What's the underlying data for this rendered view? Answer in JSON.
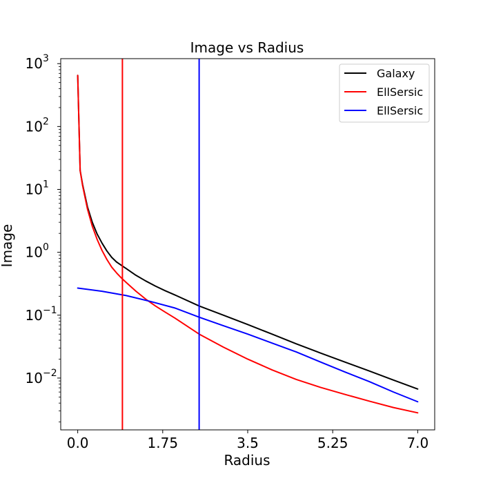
{
  "chart_data": {
    "type": "line",
    "title": "Image vs Radius",
    "xlabel": "Radius",
    "ylabel": "Image",
    "xlim": [
      -0.35,
      7.35
    ],
    "ylim": [
      0.0015,
      1200
    ],
    "yscale": "log",
    "x_ticks": [
      {
        "value": 0.0,
        "label": "0.0"
      },
      {
        "value": 1.75,
        "label": "1.75"
      },
      {
        "value": 3.5,
        "label": "3.5"
      },
      {
        "value": 5.25,
        "label": "5.25"
      },
      {
        "value": 7.0,
        "label": "7.0"
      }
    ],
    "y_ticks": [
      {
        "value": 0.01,
        "base": "10",
        "exp": "−2"
      },
      {
        "value": 0.1,
        "base": "10",
        "exp": "−1"
      },
      {
        "value": 1,
        "base": "10",
        "exp": "0"
      },
      {
        "value": 10,
        "base": "10",
        "exp": "1"
      },
      {
        "value": 100,
        "base": "10",
        "exp": "2"
      },
      {
        "value": 1000,
        "base": "10",
        "exp": "3"
      }
    ],
    "grid": false,
    "legend_position": "top-right",
    "series": [
      {
        "name": "Galaxy",
        "color": "#000000",
        "x": [
          0.0,
          0.05,
          0.1,
          0.2,
          0.3,
          0.4,
          0.5,
          0.6,
          0.7,
          0.8,
          0.9,
          1.0,
          1.2,
          1.4,
          1.6,
          1.8,
          2.0,
          2.5,
          3.0,
          3.5,
          4.0,
          4.5,
          5.0,
          5.5,
          6.0,
          6.5,
          7.0
        ],
        "y": [
          650,
          20.0,
          12.0,
          5.3,
          3.0,
          1.95,
          1.4,
          1.05,
          0.83,
          0.7,
          0.62,
          0.55,
          0.43,
          0.35,
          0.29,
          0.245,
          0.21,
          0.14,
          0.1,
          0.071,
          0.05,
          0.035,
          0.025,
          0.018,
          0.013,
          0.0093,
          0.0067
        ]
      },
      {
        "name": "EllSersic",
        "color": "#ff0000",
        "x": [
          0.0,
          0.05,
          0.1,
          0.2,
          0.3,
          0.4,
          0.5,
          0.6,
          0.7,
          0.8,
          0.9,
          1.0,
          1.2,
          1.4,
          1.6,
          1.8,
          2.0,
          2.5,
          3.0,
          3.5,
          4.0,
          4.5,
          5.0,
          5.5,
          6.0,
          6.5,
          7.0
        ],
        "y": [
          650,
          20.0,
          11.5,
          4.9,
          2.6,
          1.6,
          1.07,
          0.77,
          0.58,
          0.47,
          0.39,
          0.33,
          0.24,
          0.18,
          0.14,
          0.112,
          0.09,
          0.05,
          0.031,
          0.02,
          0.0135,
          0.0095,
          0.0071,
          0.0055,
          0.0043,
          0.0034,
          0.0028
        ]
      },
      {
        "name": "EllSersic",
        "color": "#0000ff",
        "x": [
          0.0,
          0.5,
          1.0,
          1.5,
          2.0,
          2.5,
          3.0,
          3.5,
          4.0,
          4.5,
          5.0,
          5.5,
          6.0,
          6.5,
          7.0
        ],
        "y": [
          0.27,
          0.24,
          0.205,
          0.165,
          0.13,
          0.093,
          0.068,
          0.05,
          0.036,
          0.026,
          0.018,
          0.0125,
          0.0088,
          0.006,
          0.0042
        ]
      }
    ],
    "vlines": [
      {
        "x": 0.92,
        "color": "#ff0000"
      },
      {
        "x": 2.5,
        "color": "#0000ff"
      }
    ]
  }
}
